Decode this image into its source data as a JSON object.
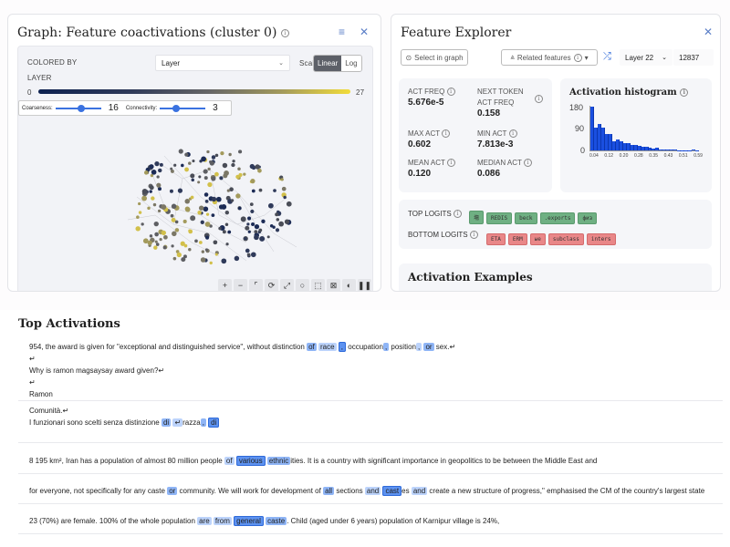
{
  "graph_panel": {
    "title": "Graph: Feature coactivations (cluster 0)",
    "colored_by_label": "COLORED BY",
    "colored_by_value": "Layer",
    "scale_label": "Scale",
    "scale_options": [
      "Linear",
      "Log"
    ],
    "scale_selected": "Linear",
    "legend_title": "LAYER",
    "legend_min": "0",
    "legend_max": "27",
    "coarseness_label": "Coarseness:",
    "coarseness_value": "16",
    "connectivity_label": "Connectivity:",
    "connectivity_value": "3",
    "toolbar": [
      "zoom-in",
      "zoom-out",
      "fit-view",
      "rotate",
      "expand",
      "lasso",
      "box-select",
      "deselect",
      "dark-mode",
      "pause"
    ]
  },
  "explorer_panel": {
    "title": "Feature Explorer",
    "select_in_graph": "Select in graph",
    "related_features": "Related features",
    "layer_select": "Layer 22",
    "feature_id": "12837",
    "stats": {
      "act_freq_label": "ACT FREQ",
      "act_freq": "5.676e-5",
      "next_token_label_1": "NEXT TOKEN",
      "next_token_label_2": "ACT FREQ",
      "next_token_act_freq": "0.158",
      "max_act_label": "MAX ACT",
      "max_act": "0.602",
      "min_act_label": "MIN ACT",
      "min_act": "7.813e-3",
      "mean_act_label": "MEAN ACT",
      "mean_act": "0.120",
      "median_act_label": "MEDIAN ACT",
      "median_act": "0.086"
    },
    "histogram_title": "Activation histogram",
    "top_logits_label": "TOP LOGITS",
    "top_logits": [
      "塲",
      "REDIS",
      "beck",
      ".exports",
      "физ"
    ],
    "bottom_logits_label": "BOTTOM LOGITS",
    "bottom_logits": [
      "ETA",
      "ERM",
      "ые",
      "subclass",
      "inters"
    ],
    "activation_examples_title": "Activation Examples"
  },
  "chart_data": {
    "type": "bar",
    "title": "Activation histogram",
    "xlabel": "",
    "ylabel": "",
    "x_ticks": [
      "0.04",
      "0.12",
      "0.20",
      "0.28",
      "0.35",
      "0.43",
      "0.51",
      "0.59"
    ],
    "y_ticks": [
      "0",
      "90",
      "180"
    ],
    "ylim": [
      0,
      180
    ],
    "values": [
      178,
      92,
      108,
      92,
      68,
      68,
      38,
      44,
      38,
      28,
      28,
      22,
      22,
      18,
      14,
      14,
      12,
      7,
      12,
      2,
      4,
      2,
      2,
      2,
      1,
      1,
      1,
      1,
      2,
      1
    ],
    "color": "#1a4fe0"
  },
  "top_activations": {
    "title": "Top Activations",
    "rows": [
      {
        "lines": [
          [
            [
              "954, the award is given for \"exceptional and distinguished service\", without distinction ",
              0
            ],
            [
              "of",
              2
            ],
            [
              " ",
              0
            ],
            [
              "race",
              1
            ],
            [
              " ",
              0
            ],
            [
              ",",
              3
            ],
            [
              " occupation",
              0
            ],
            [
              ",",
              2
            ],
            [
              " position",
              0
            ],
            [
              ",",
              1
            ],
            [
              " ",
              0
            ],
            [
              "or",
              2
            ],
            [
              " sex.↵",
              0
            ]
          ],
          [
            [
              "↵",
              0
            ]
          ],
          [
            [
              "Why is ramon magsaysay award given?↵",
              0
            ]
          ],
          [
            [
              "↵",
              0
            ]
          ],
          [
            [
              "Ramon",
              0
            ]
          ]
        ]
      },
      {
        "lines": [
          [
            [
              "Comunità.↵",
              0
            ]
          ],
          [
            [
              "I funzionari sono scelti senza distinzione ",
              0
            ],
            [
              "di",
              2
            ],
            [
              " ",
              0
            ],
            [
              "↵",
              1
            ],
            [
              "razza",
              0
            ],
            [
              ",",
              2
            ],
            [
              " ",
              0
            ],
            [
              "di",
              3
            ]
          ]
        ]
      },
      {
        "lines": [
          [
            [
              "8 195 km², Iran has a population of almost 80 million people ",
              0
            ],
            [
              "of",
              1
            ],
            [
              " ",
              0
            ],
            [
              "various",
              3
            ],
            [
              " ",
              0
            ],
            [
              "ethnic",
              2
            ],
            [
              "ities. It is a country with significant importance in geopolitics to be between the Middle East and",
              0
            ]
          ]
        ]
      },
      {
        "lines": [
          [
            [
              " for everyone, not specifically for any caste ",
              0
            ],
            [
              "or",
              2
            ],
            [
              " community. We will work for development of ",
              0
            ],
            [
              "all",
              2
            ],
            [
              " sections ",
              0
            ],
            [
              "and",
              1
            ],
            [
              " ",
              0
            ],
            [
              "cast",
              3
            ],
            [
              "es ",
              0
            ],
            [
              "and",
              1
            ],
            [
              " create a new structure of progress,\" emphasised the CM of the country's largest state",
              0
            ]
          ]
        ]
      },
      {
        "lines": [
          [
            [
              "23 (70%) are female. 100% of the whole population ",
              0
            ],
            [
              "are",
              1
            ],
            [
              " ",
              0
            ],
            [
              "from",
              1
            ],
            [
              " ",
              0
            ],
            [
              "general",
              3
            ],
            [
              " ",
              0
            ],
            [
              "caste",
              2
            ],
            [
              ". Child (aged under 6 years) population of Karnipur village is 24%,",
              0
            ]
          ]
        ]
      }
    ]
  }
}
